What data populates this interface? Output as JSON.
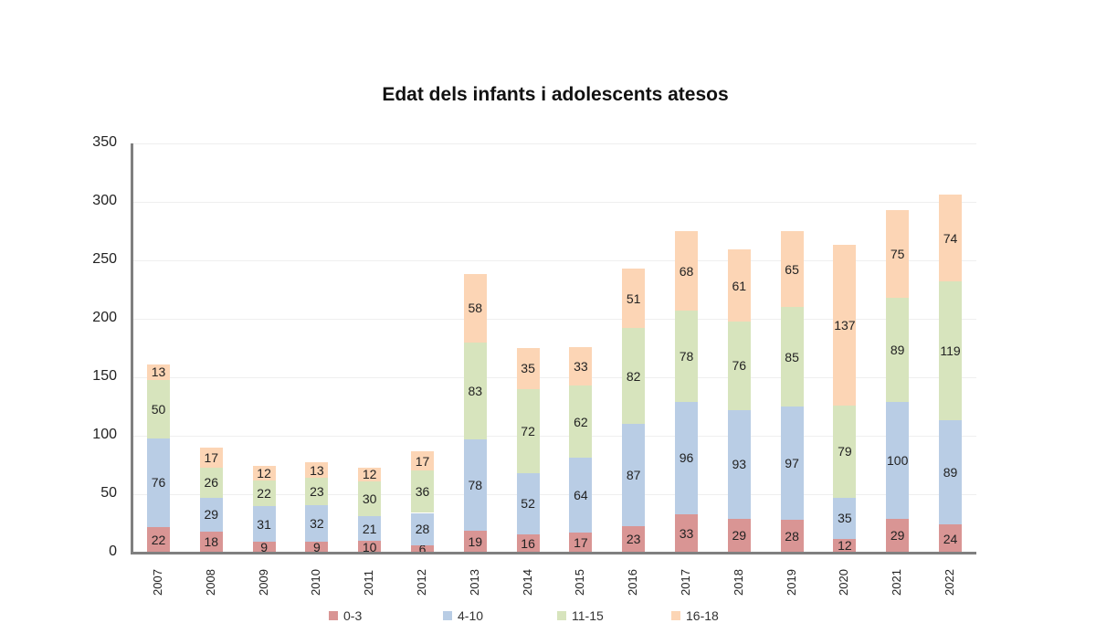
{
  "chart_data": {
    "type": "bar",
    "stacked": true,
    "title": "Edat dels infants i adolescents atesos",
    "xlabel": "",
    "ylabel": "",
    "ylim": [
      0,
      350
    ],
    "yticks": [
      0,
      50,
      100,
      150,
      200,
      250,
      300,
      350
    ],
    "grid": true,
    "legend_position": "bottom",
    "categories": [
      "2007",
      "2008",
      "2009",
      "2010",
      "2011",
      "2012",
      "2013",
      "2014",
      "2015",
      "2016",
      "2017",
      "2018",
      "2019",
      "2020",
      "2021",
      "2022"
    ],
    "series": [
      {
        "name": "0-3",
        "color": "#d99594",
        "values": [
          22,
          18,
          9,
          9,
          10,
          6,
          19,
          16,
          17,
          23,
          33,
          29,
          28,
          12,
          29,
          24
        ]
      },
      {
        "name": "4-10",
        "color": "#b9cde5",
        "values": [
          76,
          29,
          31,
          32,
          21,
          28,
          78,
          52,
          64,
          87,
          96,
          93,
          97,
          35,
          100,
          89
        ]
      },
      {
        "name": "11-15",
        "color": "#d7e4bd",
        "values": [
          50,
          26,
          22,
          23,
          30,
          36,
          83,
          72,
          62,
          82,
          78,
          76,
          85,
          79,
          89,
          119
        ]
      },
      {
        "name": "16-18",
        "color": "#fcd5b5",
        "values": [
          13,
          17,
          12,
          13,
          12,
          17,
          58,
          35,
          33,
          51,
          68,
          61,
          65,
          137,
          75,
          74
        ]
      }
    ]
  }
}
